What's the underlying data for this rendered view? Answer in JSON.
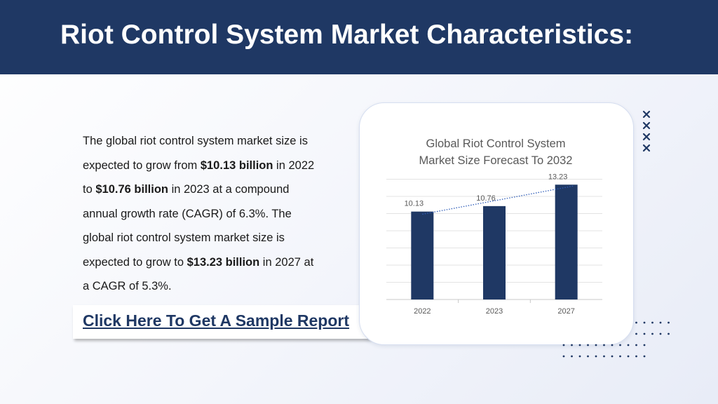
{
  "slide": {
    "title": "Riot Control System Market Characteristics:",
    "paragraph": [
      {
        "text": "The global riot control system market size is expected to grow from ",
        "bold": false
      },
      {
        "text": "$10.13 billion",
        "bold": true
      },
      {
        "text": " in 2022 to ",
        "bold": false
      },
      {
        "text": "$10.76 billion",
        "bold": true
      },
      {
        "text": " in 2023 at a compound annual growth rate (CAGR) of 6.3%. The global riot control system market size is expected to grow to ",
        "bold": false
      },
      {
        "text": "$13.23 billion",
        "bold": true
      },
      {
        "text": " in 2027 at a CAGR of 5.3%.",
        "bold": false
      }
    ],
    "cta_label": "Click Here To Get A Sample Report"
  },
  "colors": {
    "header_bg": "#1f3864",
    "bar": "#1f3864",
    "link": "#1f3864",
    "trendline": "#2e5cb8",
    "decoration": "#1f3864"
  },
  "decorations": {
    "x_marks": "cross-icon",
    "dot_grid": "dot-grid-icon"
  },
  "chart_data": {
    "type": "bar",
    "title": "Global Riot Control System Market Size Forecast To 2032",
    "categories": [
      "2022",
      "2023",
      "2027"
    ],
    "values": [
      10.13,
      10.76,
      13.23
    ],
    "data_labels": [
      "10.13",
      "10.76",
      "13.23"
    ],
    "ylim": [
      0,
      13.9
    ],
    "grid": true,
    "trendline": "linear, dotted",
    "legend": "none"
  }
}
